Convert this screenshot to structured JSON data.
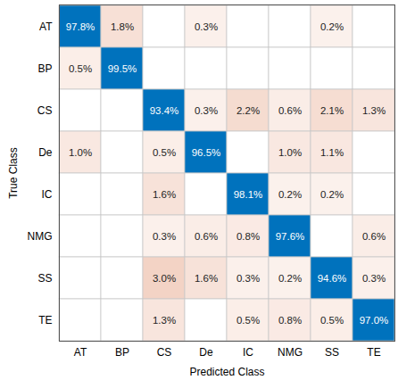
{
  "chart_data": {
    "type": "heatmap",
    "x_label": "Predicted Class",
    "y_label": "True Class",
    "x_categories": [
      "AT",
      "BP",
      "CS",
      "De",
      "IC",
      "NMG",
      "SS",
      "TE"
    ],
    "y_categories": [
      "AT",
      "BP",
      "CS",
      "De",
      "IC",
      "NMG",
      "SS",
      "TE"
    ],
    "cells": [
      [
        97.8,
        1.8,
        null,
        0.3,
        null,
        null,
        0.2,
        null
      ],
      [
        0.5,
        99.5,
        null,
        null,
        null,
        null,
        null,
        null
      ],
      [
        null,
        null,
        93.4,
        0.3,
        2.2,
        0.6,
        2.1,
        1.3
      ],
      [
        1.0,
        null,
        0.5,
        96.5,
        null,
        1.0,
        1.1,
        null
      ],
      [
        null,
        null,
        1.6,
        null,
        98.1,
        0.2,
        0.2,
        null
      ],
      [
        null,
        null,
        0.3,
        0.6,
        0.8,
        97.6,
        null,
        0.6
      ],
      [
        null,
        null,
        3.0,
        1.6,
        0.3,
        0.2,
        94.6,
        0.3
      ],
      [
        null,
        null,
        1.3,
        null,
        0.5,
        0.8,
        0.5,
        97.0
      ]
    ],
    "value_labels": [
      [
        "97.8%",
        "1.8%",
        null,
        "0.3%",
        null,
        null,
        "0.2%",
        null
      ],
      [
        "0.5%",
        "99.5%",
        null,
        null,
        null,
        null,
        null,
        null
      ],
      [
        null,
        null,
        "93.4%",
        "0.3%",
        "2.2%",
        "0.6%",
        "2.1%",
        "1.3%"
      ],
      [
        "1.0%",
        null,
        "0.5%",
        "96.5%",
        null,
        "1.0%",
        "1.1%",
        null
      ],
      [
        null,
        null,
        "1.6%",
        null,
        "98.1%",
        "0.2%",
        "0.2%",
        null
      ],
      [
        null,
        null,
        "0.3%",
        "0.6%",
        "0.8%",
        "97.6%",
        null,
        "0.6%"
      ],
      [
        null,
        null,
        "3.0%",
        "1.6%",
        "0.3%",
        "0.2%",
        "94.6%",
        "0.3%"
      ],
      [
        null,
        null,
        "1.3%",
        null,
        "0.5%",
        "0.8%",
        "0.5%",
        "97.0%"
      ]
    ],
    "data_labels": true
  }
}
